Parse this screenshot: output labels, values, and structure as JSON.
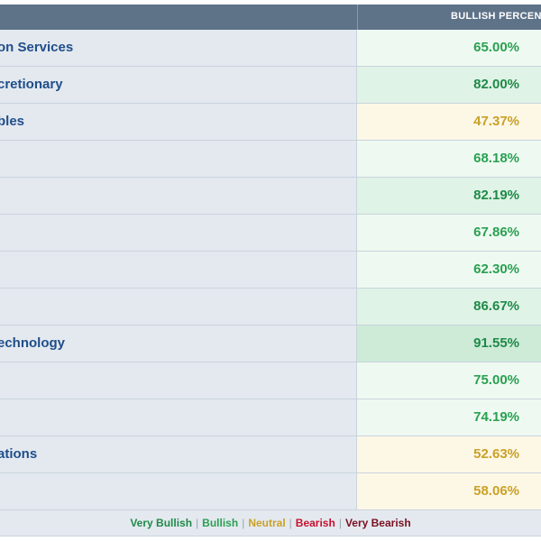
{
  "header": {
    "bullish_label": "BULLISH PERCENT"
  },
  "rows": [
    {
      "name": "on Services",
      "value": "65.00%",
      "text_color": "#2aa052",
      "bg": "#eefaf1"
    },
    {
      "name": "cretionary",
      "value": "82.00%",
      "text_color": "#1f8a48",
      "bg": "#dff3e6"
    },
    {
      "name": "bles",
      "value": "47.37%",
      "text_color": "#c9a227",
      "bg": "#fdf7e6"
    },
    {
      "name": "",
      "value": "68.18%",
      "text_color": "#2aa052",
      "bg": "#eefaf1"
    },
    {
      "name": "",
      "value": "82.19%",
      "text_color": "#1f8a48",
      "bg": "#dff3e6"
    },
    {
      "name": "",
      "value": "67.86%",
      "text_color": "#2aa052",
      "bg": "#eefaf1"
    },
    {
      "name": "",
      "value": "62.30%",
      "text_color": "#2aa052",
      "bg": "#eefaf1"
    },
    {
      "name": "",
      "value": "86.67%",
      "text_color": "#1f8a48",
      "bg": "#dff3e6"
    },
    {
      "name": "echnology",
      "value": "91.55%",
      "text_color": "#1f8a48",
      "bg": "#cdebd7"
    },
    {
      "name": "",
      "value": "75.00%",
      "text_color": "#2aa052",
      "bg": "#eefaf1"
    },
    {
      "name": "",
      "value": "74.19%",
      "text_color": "#2aa052",
      "bg": "#eefaf1"
    },
    {
      "name": "ations",
      "value": "52.63%",
      "text_color": "#c9a227",
      "bg": "#fdf7e6"
    },
    {
      "name": "",
      "value": "58.06%",
      "text_color": "#c9a227",
      "bg": "#fdf7e6"
    }
  ],
  "legend": {
    "very_bullish": "Very Bullish",
    "bullish": "Bullish",
    "neutral": "Neutral",
    "bearish": "Bearish",
    "very_bearish": "Very Bearish",
    "separator": "|",
    "colors": {
      "very_bullish": "#1f8a48",
      "bullish": "#2aa052",
      "neutral": "#c9a227",
      "bearish": "#c8102e",
      "very_bearish": "#7a1020"
    }
  }
}
